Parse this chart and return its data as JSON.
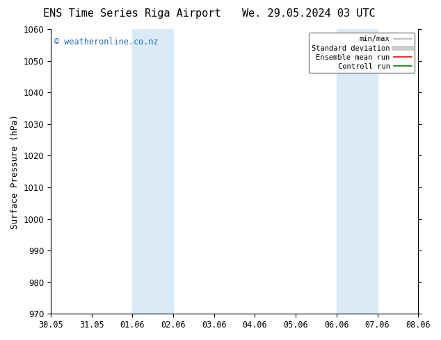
{
  "title_left": "ENS Time Series Riga Airport",
  "title_right": "We. 29.05.2024 03 UTC",
  "ylabel": "Surface Pressure (hPa)",
  "ylim": [
    970,
    1060
  ],
  "yticks": [
    970,
    980,
    990,
    1000,
    1010,
    1020,
    1030,
    1040,
    1050,
    1060
  ],
  "xtick_labels": [
    "30.05",
    "31.05",
    "01.06",
    "02.06",
    "03.06",
    "04.06",
    "05.06",
    "06.06",
    "07.06",
    "08.06"
  ],
  "watermark": "© weatheronline.co.nz",
  "watermark_color": "#1a6abf",
  "bg_color": "#ffffff",
  "plot_bg_color": "#ffffff",
  "shaded_regions": [
    {
      "xstart": 2,
      "xend": 3
    },
    {
      "xstart": 7,
      "xend": 8
    }
  ],
  "shade_color": "#daeaf7",
  "legend_entries": [
    {
      "label": "min/max",
      "color": "#b0b0b0",
      "lw": 1.2,
      "style": "solid"
    },
    {
      "label": "Standard deviation",
      "color": "#cccccc",
      "lw": 5,
      "style": "solid"
    },
    {
      "label": "Ensemble mean run",
      "color": "#ff0000",
      "lw": 1.2,
      "style": "solid"
    },
    {
      "label": "Controll run",
      "color": "#008000",
      "lw": 1.2,
      "style": "solid"
    }
  ],
  "title_fontsize": 11,
  "axis_fontsize": 9,
  "tick_fontsize": 8.5
}
